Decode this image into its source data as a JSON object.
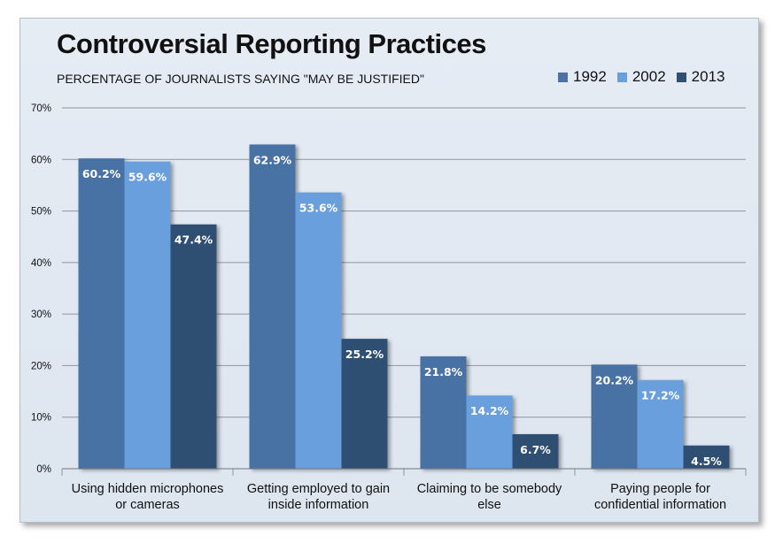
{
  "chart_data": {
    "type": "bar",
    "title": "Controversial Reporting Practices",
    "subtitle": "PERCENTAGE OF JOURNALISTS SAYING \"MAY BE JUSTIFIED\"",
    "categories": [
      [
        "Using hidden microphones",
        "or cameras"
      ],
      [
        "Getting employed to gain",
        "inside information"
      ],
      [
        "Claiming to be somebody",
        "else"
      ],
      [
        "Paying people for",
        "confidential information"
      ]
    ],
    "series": [
      {
        "name": "1992",
        "color": "#4a72a4",
        "values": [
          60.2,
          62.9,
          21.8,
          20.2
        ],
        "labels": [
          "60.2%",
          "62.9%",
          "21.8%",
          "20.2%"
        ]
      },
      {
        "name": "2002",
        "color": "#6a9fde",
        "values": [
          59.6,
          53.6,
          14.2,
          17.2
        ],
        "labels": [
          "59.6%",
          "53.6%",
          "14.2%",
          "17.2%"
        ]
      },
      {
        "name": "2013",
        "color": "#2f5072",
        "values": [
          47.4,
          25.2,
          6.7,
          4.5
        ],
        "labels": [
          "47.4%",
          "25.2%",
          "6.7%",
          "4.5%"
        ]
      }
    ],
    "ylim": [
      0,
      70
    ],
    "yticks": [
      "0%",
      "10%",
      "20%",
      "30%",
      "40%",
      "50%",
      "60%",
      "70%"
    ],
    "xlabel": "",
    "ylabel": "",
    "grid": true,
    "legend_position": "top-right"
  }
}
